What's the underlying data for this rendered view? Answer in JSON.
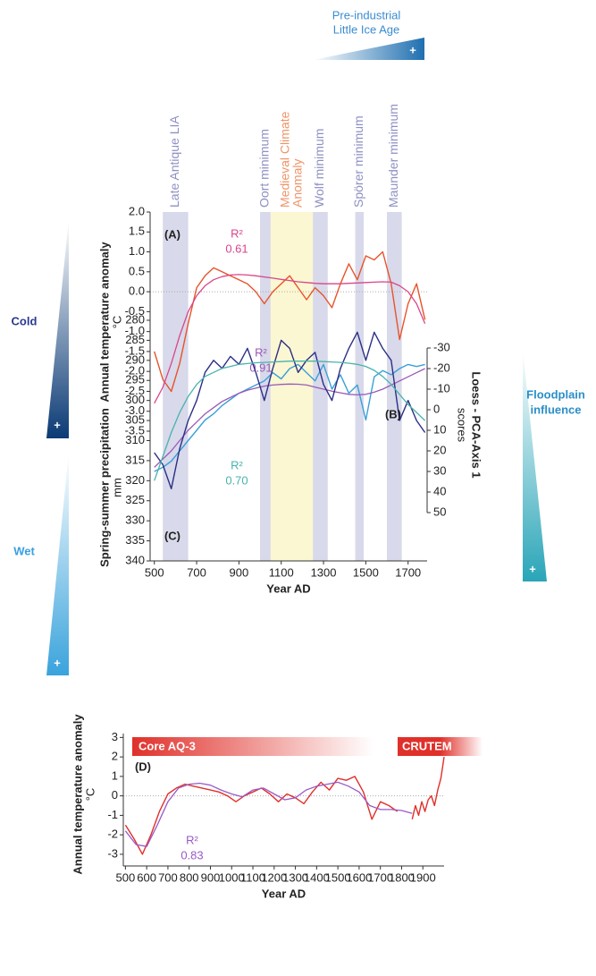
{
  "chart_data": [
    {
      "type": "line",
      "x_label": "Year AD",
      "y_label": "Annual temperature anomaly",
      "y_unit": "°C",
      "y2_label": "Loess - PCA-Axis 1",
      "y2_unit": "scores",
      "y3_label": "Spring-summer precipitation",
      "y3_unit": "mm",
      "x": [
        500,
        540,
        580,
        620,
        660,
        700,
        740,
        780,
        820,
        860,
        900,
        940,
        980,
        1020,
        1060,
        1100,
        1140,
        1180,
        1220,
        1260,
        1300,
        1340,
        1380,
        1420,
        1460,
        1500,
        1540,
        1580,
        1620,
        1660,
        1700,
        1740,
        1780
      ],
      "xlim": [
        480,
        1790
      ],
      "xticks": [
        500,
        700,
        900,
        1100,
        1300,
        1500,
        1700
      ],
      "ylim": [
        -3.5,
        2
      ],
      "yticks": [
        {
          "value": 2,
          "label": "2.0"
        },
        1.5,
        {
          "value": 1,
          "label": "1.0"
        },
        0.5,
        {
          "value": 0,
          "label": "0.0"
        },
        -0.5,
        {
          "value": -1,
          "label": "-1.0"
        },
        -1.5,
        {
          "value": -2,
          "label": "-2.0"
        },
        -2.5,
        {
          "value": -3,
          "label": "-3.0"
        },
        -3.5
      ],
      "y2lim": [
        -30,
        50
      ],
      "y2ticks": [
        -30,
        -20,
        -10,
        0,
        10,
        20,
        30,
        40,
        50
      ],
      "y2_inverted": true,
      "y3lim": [
        280,
        340
      ],
      "y3ticks": [
        280,
        285,
        290,
        295,
        300,
        305,
        310,
        315,
        320,
        325,
        330,
        335,
        340
      ],
      "y3_inverted": true,
      "zero_line": true,
      "panel_labels": [
        "(A)",
        "(B)",
        "(C)"
      ],
      "r2_label": "R²",
      "series": [
        {
          "color": "#e8532a",
          "axis": "y",
          "values": [
            -1.5,
            -2.2,
            -2.5,
            -1.8,
            -0.8,
            0.1,
            0.4,
            0.6,
            0.5,
            0.4,
            0.3,
            0.2,
            0.0,
            -0.3,
            0.0,
            0.2,
            0.4,
            0.1,
            -0.2,
            0.1,
            -0.1,
            -0.4,
            0.2,
            0.7,
            0.3,
            0.9,
            0.8,
            1.0,
            0.2,
            -1.2,
            -0.3,
            0.2,
            -0.7
          ]
        },
        {
          "color": "#d9468a",
          "axis": "y",
          "r2": 0.61,
          "values": [
            -2.8,
            -2.4,
            -1.8,
            -1.1,
            -0.5,
            -0.1,
            0.15,
            0.3,
            0.38,
            0.42,
            0.43,
            0.42,
            0.4,
            0.37,
            0.34,
            0.31,
            0.28,
            0.25,
            0.23,
            0.21,
            0.2,
            0.2,
            0.2,
            0.21,
            0.22,
            0.23,
            0.24,
            0.25,
            0.24,
            0.15,
            0.0,
            -0.3,
            -0.8
          ]
        },
        {
          "color": "#3aa0d8",
          "axis": "y2",
          "values": [
            30,
            28,
            25,
            20,
            15,
            10,
            5,
            2,
            -2,
            -5,
            -8,
            -10,
            -12,
            -14,
            -18,
            -15,
            -20,
            -22,
            -18,
            -14,
            -22,
            -10,
            -17,
            -8,
            -12,
            5,
            -16,
            -19,
            -17,
            -20,
            -22,
            -21,
            -22
          ]
        },
        {
          "color": "#9a5ab8",
          "axis": "y2",
          "r2": 0.91,
          "values": [
            28,
            24,
            20,
            15,
            10,
            6,
            2,
            -1,
            -4,
            -6,
            -8,
            -9.5,
            -10.5,
            -11.5,
            -12,
            -12.3,
            -12.5,
            -12.4,
            -12,
            -11,
            -10,
            -9,
            -8.2,
            -7.5,
            -7.2,
            -7.5,
            -8.5,
            -10,
            -12,
            -14,
            -16,
            -18,
            -20
          ]
        },
        {
          "color": "#2c2f85",
          "axis": "y3",
          "values": [
            313,
            316,
            322,
            312,
            305,
            300,
            293,
            290,
            292,
            289,
            291,
            287,
            293,
            300,
            292,
            285,
            287,
            293,
            290,
            288,
            296,
            300,
            292,
            287,
            283,
            290,
            283,
            287,
            290,
            305,
            300,
            305,
            308
          ]
        },
        {
          "color": "#48b3ad",
          "axis": "y3",
          "r2": {
            "value": 0.7,
            "label": "0.70"
          },
          "values": [
            320,
            314,
            308,
            303,
            299,
            296,
            294,
            293,
            292,
            291.5,
            291,
            290.8,
            290.6,
            290.5,
            290.4,
            290.3,
            290.2,
            290.2,
            290.2,
            290.2,
            290.3,
            290.4,
            290.5,
            290.7,
            291,
            291.5,
            292.5,
            294,
            296,
            298.5,
            301,
            303,
            305
          ]
        }
      ],
      "periods": [
        {
          "label_lines": [
            "Late Antique LIA"
          ],
          "start": 540,
          "end": 660,
          "color": "#d8d9ea",
          "label_color": "#8e90c2"
        },
        {
          "label_lines": [
            "Oort minimum"
          ],
          "start": 1000,
          "end": 1050,
          "color": "#d8d9ea",
          "label_color": "#8e90c2"
        },
        {
          "label_lines": [
            "Medieval Climate",
            "Anomaly"
          ],
          "start": 1050,
          "end": 1250,
          "color": "#fbf7d2",
          "label_color": "#ef9468"
        },
        {
          "label_lines": [
            "Wolf minimum"
          ],
          "start": 1250,
          "end": 1320,
          "color": "#d8d9ea",
          "label_color": "#8e90c2"
        },
        {
          "label_lines": [
            "Spörer minimum"
          ],
          "start": 1450,
          "end": 1490,
          "color": "#d8d9ea",
          "label_color": "#8e90c2"
        },
        {
          "label_lines": [
            "Maunder minimum"
          ],
          "start": 1600,
          "end": 1670,
          "color": "#d8d9ea",
          "label_color": "#8e90c2"
        }
      ],
      "gradient_labels": {
        "pre_industrial": [
          "Pre-industrial",
          "Little Ice Age"
        ],
        "cold": "Cold",
        "wet": "Wet",
        "floodplain": [
          "Floodplain",
          "influence"
        ],
        "plus": "+"
      }
    },
    {
      "type": "line",
      "x_label": "Year AD",
      "y_label": "Annual temperature anomaly",
      "y_unit": "°C",
      "xlim": [
        490,
        2000
      ],
      "xticks": [
        500,
        600,
        700,
        800,
        900,
        1000,
        1100,
        1200,
        1300,
        1400,
        1500,
        1600,
        1700,
        1800,
        1900
      ],
      "ylim": [
        -3.6,
        3.2
      ],
      "yticks": [
        3,
        2,
        1,
        0,
        -1,
        -2,
        -3
      ],
      "zero_line": true,
      "panel_labels": [
        "(D)"
      ],
      "r2_label": "R²",
      "series": [
        {
          "name": "Core AQ-3",
          "color": "#e0302a",
          "x": [
            500,
            540,
            580,
            620,
            660,
            700,
            740,
            780,
            820,
            860,
            900,
            940,
            980,
            1020,
            1060,
            1100,
            1140,
            1180,
            1220,
            1260,
            1300,
            1340,
            1380,
            1420,
            1460,
            1500,
            1540,
            1580,
            1620,
            1660,
            1700,
            1740,
            1780
          ],
          "values": [
            -1.5,
            -2.2,
            -3.0,
            -2.0,
            -0.8,
            0.1,
            0.4,
            0.6,
            0.5,
            0.4,
            0.3,
            0.2,
            0.0,
            -0.3,
            0.0,
            0.2,
            0.4,
            0.1,
            -0.3,
            0.1,
            -0.1,
            -0.4,
            0.2,
            0.7,
            0.3,
            0.9,
            0.8,
            1.0,
            0.2,
            -1.2,
            -0.3,
            -0.5,
            -0.8
          ]
        },
        {
          "name": "CRUTEM",
          "color": "#e0302a",
          "x": [
            1850,
            1865,
            1880,
            1895,
            1910,
            1925,
            1940,
            1955,
            1970,
            1985,
            2000
          ],
          "values": [
            -1.2,
            -0.5,
            -1.0,
            -0.3,
            -0.8,
            -0.2,
            0.0,
            -0.5,
            0.3,
            0.9,
            2.0
          ]
        },
        {
          "color": "#9a5ac8",
          "r2": 0.83,
          "x": [
            500,
            550,
            600,
            650,
            700,
            750,
            800,
            850,
            900,
            950,
            1000,
            1050,
            1100,
            1150,
            1200,
            1250,
            1300,
            1350,
            1400,
            1450,
            1500,
            1550,
            1600,
            1650,
            1700,
            1750,
            1800,
            1850
          ],
          "values": [
            -1.8,
            -2.5,
            -2.6,
            -1.5,
            -0.3,
            0.4,
            0.6,
            0.65,
            0.55,
            0.3,
            0.1,
            -0.05,
            0.3,
            0.4,
            0.1,
            -0.2,
            -0.1,
            0.3,
            0.5,
            0.6,
            0.7,
            0.5,
            0.2,
            -0.5,
            -0.7,
            -0.7,
            -0.75,
            -0.9
          ]
        }
      ]
    }
  ]
}
